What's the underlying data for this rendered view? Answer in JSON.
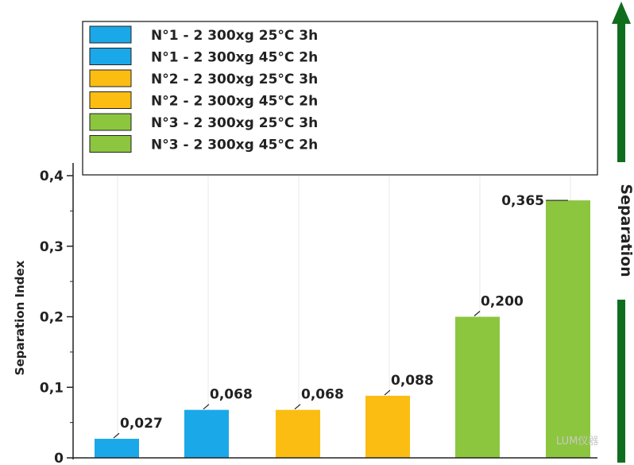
{
  "chart_data": {
    "type": "bar",
    "ylabel": "Separation Index",
    "ylim": [
      0,
      0.4
    ],
    "yticks": [
      "0",
      "0,1",
      "0,2",
      "0,3",
      "0,4"
    ],
    "grid": "vertical",
    "legend_placement": "top-left",
    "categories": [
      "N°1 - 2 300xg 25°C 3h",
      "N°1 - 2 300xg 45°C 2h",
      "N°2 - 2 300xg 25°C 3h",
      "N°2 - 2 300xg 45°C 2h",
      "N°3 - 2 300xg 25°C 3h",
      "N°3 - 2 300xg 45°C 2h"
    ],
    "values": [
      0.027,
      0.068,
      0.068,
      0.088,
      0.2,
      0.365
    ],
    "value_labels": [
      "0,027",
      "0,068",
      "0,068",
      "0,088",
      "0,200",
      "0,365"
    ],
    "colors": [
      "#1aa8e8",
      "#1aa8e8",
      "#fbbd12",
      "#fbbd12",
      "#8cc63f",
      "#8cc63f"
    ],
    "arrow_label": "Separation",
    "arrow_color": "#0f6e1e"
  },
  "watermark": "LUM仪器"
}
